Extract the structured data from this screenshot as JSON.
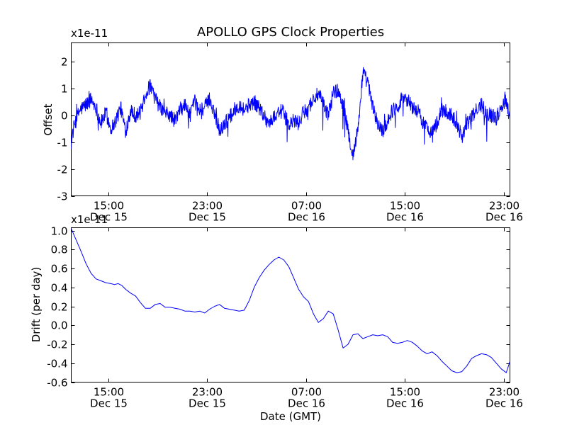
{
  "figure": {
    "title": "APOLLO GPS Clock Properties",
    "line_color": "#0000ff"
  },
  "chart_data": [
    {
      "type": "line",
      "title": "APOLLO GPS Clock Properties",
      "xlabel": "",
      "ylabel": "Offset",
      "scale_label": "x1e-11",
      "x_unit": "hours since Dec 15 12:00 GMT",
      "xlim": [
        0,
        35.5
      ],
      "ylim": [
        -3,
        2.7
      ],
      "yticks": [
        2,
        1,
        0,
        -1,
        -2,
        -3
      ],
      "ytick_labels": [
        "2",
        "1",
        "0",
        "-1",
        "-2",
        "-3"
      ],
      "xticks": [
        3,
        11,
        19,
        27,
        35
      ],
      "xtick_labels": [
        [
          "15:00",
          "Dec 15"
        ],
        [
          "23:00",
          "Dec 15"
        ],
        [
          "07:00",
          "Dec 16"
        ],
        [
          "15:00",
          "Dec 16"
        ],
        [
          "23:00",
          "Dec 16"
        ]
      ],
      "series": [
        {
          "name": "Offset",
          "color": "#0000ff",
          "noise": 0.28,
          "x": [
            0,
            0.3,
            0.7,
            1.2,
            1.6,
            2.0,
            2.4,
            2.8,
            3.2,
            3.6,
            4.0,
            4.4,
            4.8,
            5.2,
            5.6,
            6.0,
            6.4,
            6.8,
            7.2,
            7.6,
            8.0,
            8.4,
            8.8,
            9.2,
            9.6,
            10.0,
            10.4,
            10.8,
            11.2,
            11.6,
            12.0,
            12.4,
            12.8,
            13.2,
            13.6,
            14.0,
            14.4,
            14.8,
            15.2,
            15.6,
            16.0,
            16.4,
            16.8,
            17.2,
            17.6,
            18.0,
            18.4,
            18.8,
            19.2,
            19.6,
            20.0,
            20.4,
            20.8,
            21.2,
            21.6,
            22.0,
            22.4,
            22.8,
            23.2,
            23.6,
            24.0,
            24.4,
            24.8,
            25.2,
            25.6,
            26.0,
            26.4,
            26.8,
            27.2,
            27.6,
            28.0,
            28.4,
            28.8,
            29.2,
            29.6,
            30.0,
            30.4,
            30.8,
            31.2,
            31.6,
            32.0,
            32.4,
            32.8,
            33.2,
            33.6,
            34.0,
            34.4,
            34.8,
            35.2,
            35.5
          ],
          "y": [
            -0.9,
            -0.3,
            0.2,
            0.4,
            0.6,
            0.3,
            -0.3,
            0.1,
            -0.5,
            -0.2,
            0.3,
            -0.6,
            0.2,
            0.0,
            0.1,
            0.8,
            1.1,
            0.6,
            0.3,
            0.1,
            0.0,
            -0.2,
            0.2,
            0.4,
            0.0,
            0.5,
            0.2,
            0.3,
            0.6,
            0.1,
            -0.6,
            -0.3,
            -0.1,
            0.2,
            0.4,
            0.2,
            0.4,
            0.5,
            0.3,
            0.0,
            -0.3,
            -0.1,
            0.2,
            0.1,
            -0.4,
            -0.2,
            -0.3,
            0.1,
            0.3,
            0.6,
            0.8,
            0.4,
            0.0,
            0.9,
            0.9,
            0.4,
            -0.6,
            -1.5,
            -0.5,
            1.6,
            1.2,
            0.3,
            -0.3,
            -0.6,
            -0.2,
            0.2,
            0.3,
            0.7,
            0.6,
            0.3,
            0.2,
            -0.2,
            -0.5,
            -0.6,
            -0.3,
            0.2,
            0.1,
            0.0,
            -0.3,
            -0.8,
            -0.3,
            -0.1,
            0.2,
            0.4,
            0.1,
            0.0,
            -0.1,
            0.3,
            0.6,
            -0.1
          ]
        }
      ]
    },
    {
      "type": "line",
      "title": "",
      "xlabel": "Date (GMT)",
      "ylabel": "Drift (per day)",
      "scale_label": "x1e-11",
      "x_unit": "hours since Dec 15 12:00 GMT",
      "xlim": [
        0,
        35.5
      ],
      "ylim": [
        -0.6,
        1.03
      ],
      "yticks": [
        1.0,
        0.8,
        0.6,
        0.4,
        0.2,
        0.0,
        -0.2,
        -0.4,
        -0.6
      ],
      "ytick_labels": [
        "1.0",
        "0.8",
        "0.6",
        "0.4",
        "0.2",
        "0.0",
        "-0.2",
        "-0.4",
        "-0.6"
      ],
      "xticks": [
        3,
        11,
        19,
        27,
        35
      ],
      "xtick_labels": [
        [
          "15:00",
          "Dec 15"
        ],
        [
          "23:00",
          "Dec 15"
        ],
        [
          "07:00",
          "Dec 16"
        ],
        [
          "15:00",
          "Dec 16"
        ],
        [
          "23:00",
          "Dec 16"
        ]
      ],
      "series": [
        {
          "name": "Drift",
          "color": "#0000ff",
          "noise": 0,
          "x": [
            0,
            0.4,
            0.8,
            1.2,
            1.6,
            2.0,
            2.4,
            2.8,
            3.2,
            3.5,
            3.8,
            4.1,
            4.4,
            4.8,
            5.2,
            5.6,
            6.0,
            6.4,
            6.8,
            7.2,
            7.6,
            8.0,
            8.4,
            8.8,
            9.2,
            9.6,
            10.0,
            10.4,
            10.8,
            11.2,
            11.6,
            12.0,
            12.4,
            12.8,
            13.2,
            13.6,
            14.0,
            14.4,
            14.8,
            15.2,
            15.6,
            16.0,
            16.4,
            16.8,
            17.2,
            17.6,
            18.0,
            18.4,
            18.8,
            19.2,
            19.6,
            20.0,
            20.4,
            20.8,
            21.2,
            21.6,
            22.0,
            22.4,
            22.8,
            23.2,
            23.6,
            24.0,
            24.4,
            24.8,
            25.2,
            25.6,
            26.0,
            26.4,
            26.8,
            27.2,
            27.6,
            28.0,
            28.4,
            28.8,
            29.2,
            29.6,
            30.0,
            30.4,
            30.8,
            31.2,
            31.6,
            32.0,
            32.4,
            32.8,
            33.2,
            33.6,
            34.0,
            34.4,
            34.8,
            35.2,
            35.5
          ],
          "y": [
            1.02,
            0.9,
            0.78,
            0.65,
            0.55,
            0.49,
            0.47,
            0.45,
            0.44,
            0.43,
            0.44,
            0.42,
            0.38,
            0.34,
            0.31,
            0.24,
            0.18,
            0.18,
            0.22,
            0.23,
            0.19,
            0.19,
            0.18,
            0.17,
            0.15,
            0.15,
            0.14,
            0.15,
            0.13,
            0.17,
            0.2,
            0.22,
            0.18,
            0.17,
            0.16,
            0.15,
            0.16,
            0.26,
            0.4,
            0.5,
            0.58,
            0.64,
            0.69,
            0.72,
            0.69,
            0.62,
            0.5,
            0.38,
            0.3,
            0.25,
            0.12,
            0.03,
            0.07,
            0.15,
            0.12,
            -0.05,
            -0.24,
            -0.2,
            -0.1,
            -0.09,
            -0.14,
            -0.12,
            -0.1,
            -0.11,
            -0.1,
            -0.12,
            -0.18,
            -0.19,
            -0.18,
            -0.16,
            -0.18,
            -0.22,
            -0.27,
            -0.3,
            -0.28,
            -0.32,
            -0.38,
            -0.43,
            -0.48,
            -0.5,
            -0.49,
            -0.43,
            -0.35,
            -0.32,
            -0.3,
            -0.31,
            -0.34,
            -0.4,
            -0.46,
            -0.5,
            -0.38
          ]
        }
      ]
    }
  ]
}
